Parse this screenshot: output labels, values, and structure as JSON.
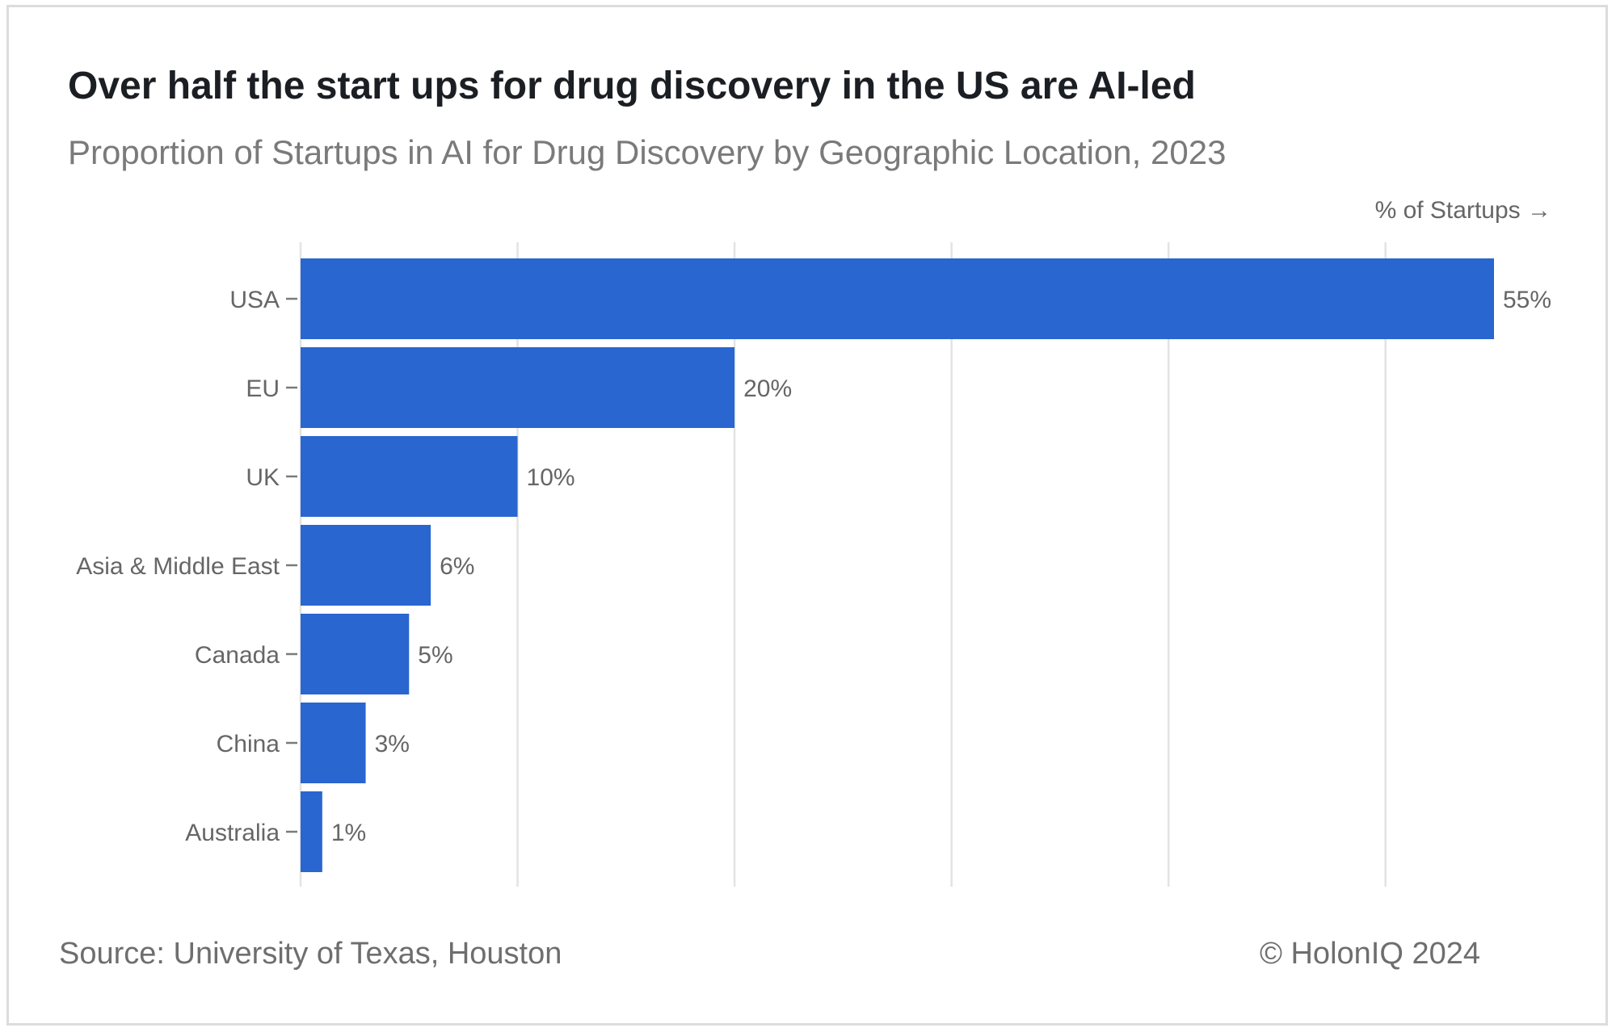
{
  "header": {
    "title": "Over half the start ups for drug discovery in the US are AI-led",
    "subtitle": "Proportion of Startups in AI for Drug Discovery by Geographic Location, 2023"
  },
  "footer": {
    "source": "Source: University of Texas, Houston",
    "copyright": "© HolonIQ 2024"
  },
  "chart_data": {
    "type": "bar",
    "orientation": "horizontal",
    "title": "Over half the start ups for drug discovery in the US are AI-led",
    "subtitle": "Proportion of Startups in AI for Drug Discovery by Geographic Location, 2023",
    "xlabel": "% of Startups →",
    "ylabel": "",
    "categories": [
      "USA",
      "EU",
      "UK",
      "Asia & Middle East",
      "Canada",
      "China",
      "Australia"
    ],
    "values": [
      55,
      20,
      10,
      6,
      5,
      3,
      1
    ],
    "value_labels": [
      "55%",
      "20%",
      "10%",
      "6%",
      "5%",
      "3%",
      "1%"
    ],
    "xlim": [
      0,
      55
    ],
    "grid_step": 10,
    "grid": true,
    "legend": "none",
    "bar_color": "#2966cf",
    "grid_color": "#e3e3e3",
    "label_color": "#666666"
  }
}
